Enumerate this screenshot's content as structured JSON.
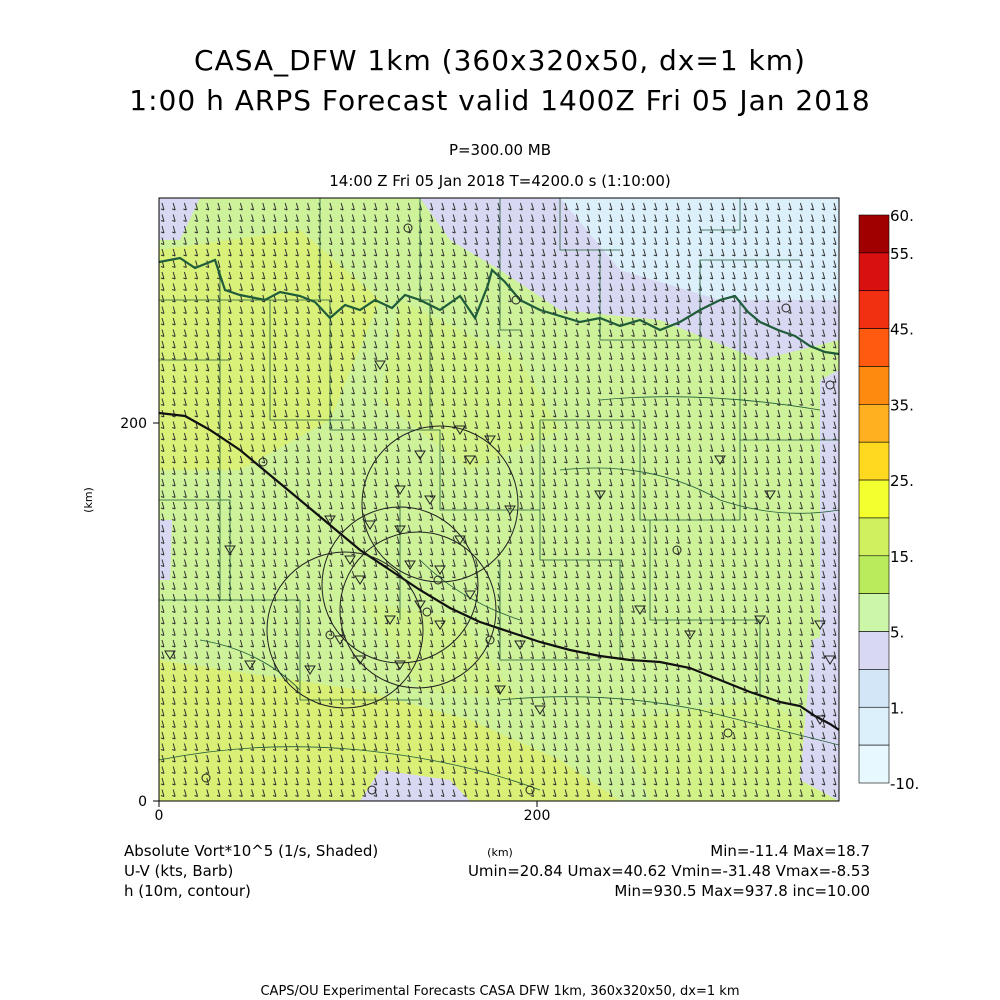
{
  "title_line1": "CASA_DFW 1km (360x320x50, dx=1 km)",
  "title_line2": "1:00 h ARPS Forecast valid 1400Z Fri 05 Jan 2018",
  "level": "P=300.00 MB",
  "valid_line": "14:00 Z Fri 05 Jan 2018    T=4200.0 s (1:10:00)",
  "axes": {
    "x_ticks": [
      "0",
      "200"
    ],
    "y_ticks": [
      "0",
      "200"
    ],
    "x_label": "(km)",
    "y_label": "(km)",
    "x_range": [
      0,
      360
    ],
    "y_range": [
      0,
      320
    ]
  },
  "colorbar": {
    "labels": [
      "60.",
      "55.",
      "45.",
      "35.",
      "25.",
      "15.",
      "5.",
      "1.",
      "-10."
    ],
    "colors": [
      "#a00000",
      "#d81010",
      "#f03010",
      "#ff5a10",
      "#ff8a10",
      "#ffb020",
      "#ffd820",
      "#f4ff30",
      "#d0f060",
      "#b8ec5c",
      "#cdf7a8",
      "#d8d8f2",
      "#d2e6f8",
      "#dcf0fb",
      "#e8f8ff"
    ]
  },
  "legend": {
    "shaded": "Absolute Vort*10^5 (1/s, Shaded)",
    "barb": "U-V (kts, Barb)",
    "contour": "h (10m, contour)",
    "shaded_stats": "Min=-11.4 Max=18.7",
    "barb_stats": "Umin=20.84 Umax=40.62 Vmin=-31.48 Vmax=-8.53",
    "contour_stats": "Min=930.5 Max=937.8 inc=10.00"
  },
  "credit": "CAPS/OU Experimental Forecasts  CASA DFW 1km, 360x320x50, dx=1 km",
  "colors": {
    "field_green": "#cdf29a",
    "field_yellow": "#dcef6e",
    "field_blue": "#d8d8f2",
    "map_lines": "#1f5c3a"
  }
}
